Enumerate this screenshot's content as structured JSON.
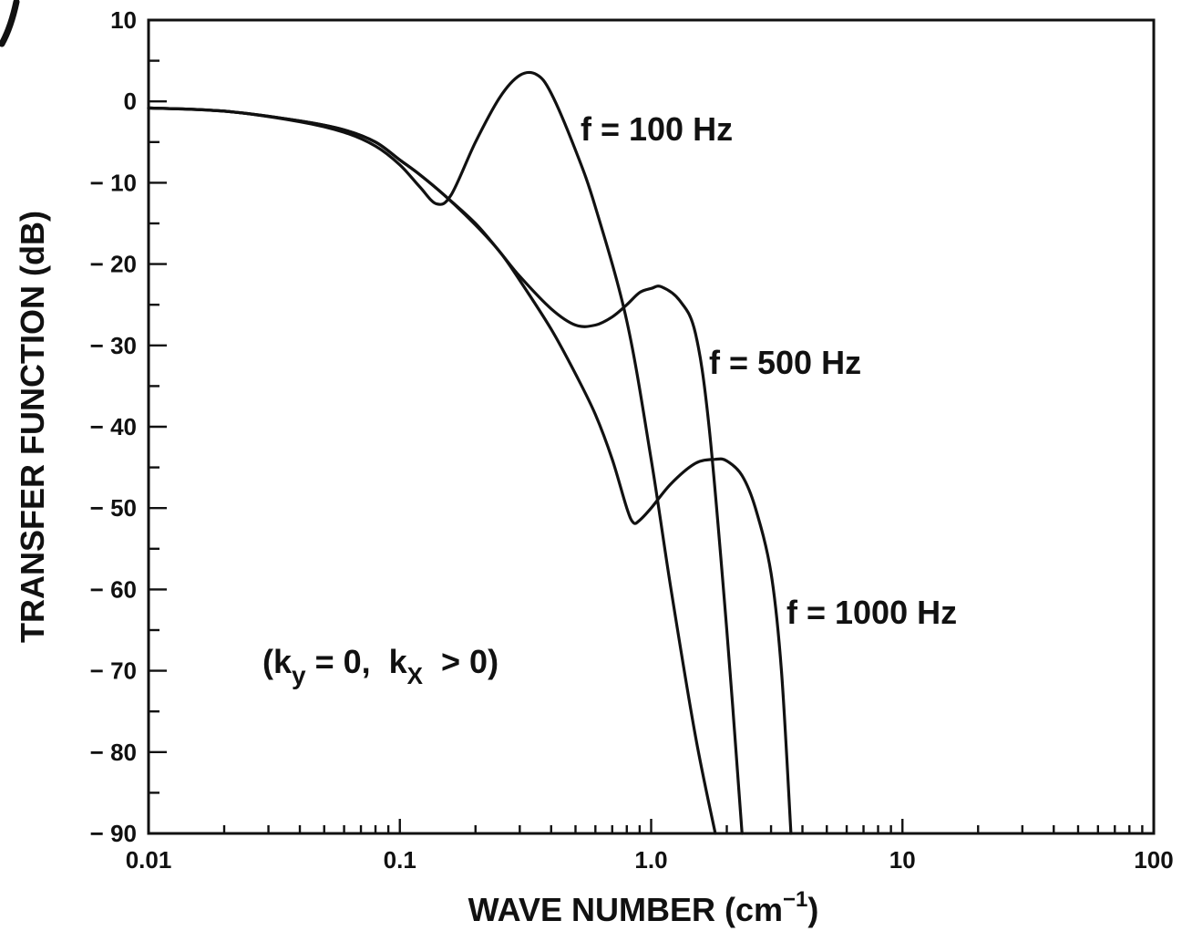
{
  "chart_data": {
    "type": "line",
    "title": "",
    "xlabel": "WAVE NUMBER (cm",
    "xlabel_sup": "−1",
    "xlabel_close": ")",
    "ylabel": "TRANSFER FUNCTION (dB)",
    "x_scale": "log",
    "xlim": [
      0.01,
      100
    ],
    "ylim": [
      -90,
      10
    ],
    "x_ticks": [
      {
        "value": 0.01,
        "label": "0.01"
      },
      {
        "value": 0.1,
        "label": "0.1"
      },
      {
        "value": 1.0,
        "label": "1.0"
      },
      {
        "value": 10,
        "label": "10"
      },
      {
        "value": 100,
        "label": "100"
      }
    ],
    "y_ticks": [
      {
        "value": 10,
        "label": "10"
      },
      {
        "value": 0,
        "label": "0"
      },
      {
        "value": -10,
        "label": "− 10"
      },
      {
        "value": -20,
        "label": "− 20"
      },
      {
        "value": -30,
        "label": "− 30"
      },
      {
        "value": -40,
        "label": "− 40"
      },
      {
        "value": -50,
        "label": "− 50"
      },
      {
        "value": -60,
        "label": "− 60"
      },
      {
        "value": -70,
        "label": "− 70"
      },
      {
        "value": -80,
        "label": "− 80"
      },
      {
        "value": -90,
        "label": "− 90"
      }
    ],
    "grid": false,
    "legend": "none",
    "series": [
      {
        "name": "f = 100 Hz",
        "x": [
          0.01,
          0.02,
          0.04,
          0.06,
          0.08,
          0.1,
          0.12,
          0.14,
          0.16,
          0.2,
          0.25,
          0.3,
          0.35,
          0.4,
          0.5,
          0.6,
          0.8,
          1.0,
          1.2,
          1.5,
          1.8
        ],
        "y": [
          -0.8,
          -1.2,
          -2.5,
          -3.8,
          -5.5,
          -7.8,
          -10.5,
          -12.6,
          -11.5,
          -5,
          0.5,
          3.2,
          3.3,
          1,
          -6,
          -13,
          -27,
          -44,
          -60,
          -78,
          -90
        ]
      },
      {
        "name": "f = 500 Hz",
        "x": [
          0.01,
          0.02,
          0.04,
          0.06,
          0.08,
          0.1,
          0.12,
          0.15,
          0.2,
          0.25,
          0.3,
          0.4,
          0.5,
          0.6,
          0.7,
          0.8,
          0.9,
          1.0,
          1.1,
          1.3,
          1.5,
          1.7,
          2.0,
          2.3
        ],
        "y": [
          -0.8,
          -1.2,
          -2.4,
          -3.5,
          -5,
          -7.2,
          -9,
          -11.5,
          -15,
          -18.5,
          -21.5,
          -25.5,
          -27.5,
          -27.5,
          -26.5,
          -25,
          -23.5,
          -23,
          -22.8,
          -24.5,
          -28.5,
          -40,
          -65,
          -90
        ]
      },
      {
        "name": "f = 1000 Hz",
        "x": [
          0.01,
          0.02,
          0.04,
          0.06,
          0.08,
          0.1,
          0.12,
          0.15,
          0.2,
          0.25,
          0.3,
          0.4,
          0.5,
          0.6,
          0.7,
          0.8,
          0.85,
          0.9,
          1.0,
          1.2,
          1.5,
          1.8,
          2.0,
          2.3,
          2.6,
          3.0,
          3.3,
          3.6
        ],
        "y": [
          -0.8,
          -1.2,
          -2.4,
          -3.5,
          -5,
          -7.2,
          -9,
          -11.5,
          -15.2,
          -18.5,
          -22,
          -28,
          -33.5,
          -38.5,
          -44,
          -50,
          -51.8,
          -51.5,
          -50,
          -47,
          -44.5,
          -44,
          -44.2,
          -46,
          -50,
          -58,
          -70,
          -90
        ]
      }
    ],
    "annotations": [
      {
        "text": "f = 100 Hz",
        "series": "f = 100 Hz"
      },
      {
        "text": "f = 500 Hz",
        "series": "f = 500 Hz"
      },
      {
        "text": "f = 1000 Hz",
        "series": "f = 1000 Hz"
      }
    ],
    "condition_note": {
      "open": "(k",
      "sub1": "y",
      "mid": " = 0,  k",
      "sub2": "X",
      "close": "  > 0)"
    }
  }
}
